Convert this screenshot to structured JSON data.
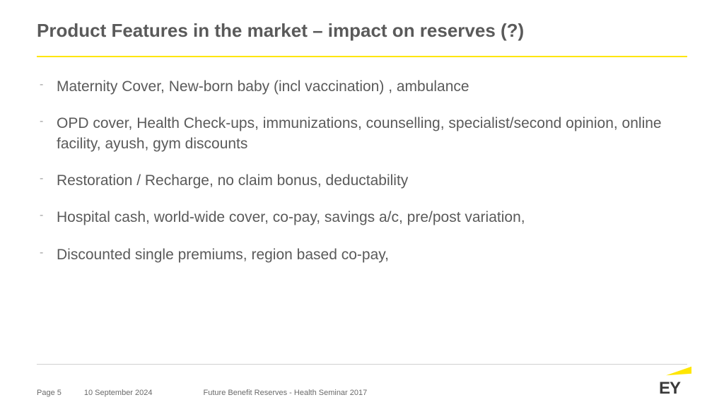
{
  "title": "Product Features in the market – impact on reserves (?)",
  "colors": {
    "title_text": "#5a5a5a",
    "body_text": "#5a5a5a",
    "bullet_marker": "#a0a0a0",
    "accent": "#ffe600",
    "footer_text": "#6a6a6a",
    "footer_divider": "#d0d0d0",
    "background": "#ffffff",
    "logo_text": "#3a3a3a"
  },
  "typography": {
    "title_fontsize": 26,
    "title_weight": "bold",
    "body_fontsize": 21,
    "footer_fontsize": 11
  },
  "bullets": [
    "Maternity Cover, New-born baby (incl vaccination) , ambulance",
    "OPD cover, Health Check-ups, immunizations, counselling, specialist/second opinion, online facility, ayush, gym discounts",
    "Restoration / Recharge, no claim bonus, deductability",
    "Hospital cash, world-wide cover, co-pay, savings a/c, pre/post variation,",
    "Discounted single premiums, region based co-pay,"
  ],
  "footer": {
    "page_label": "Page 5",
    "date": "10 September 2024",
    "doc_title": "Future Benefit  Reserves  - Health Seminar 2017",
    "logo_text": "EY"
  }
}
